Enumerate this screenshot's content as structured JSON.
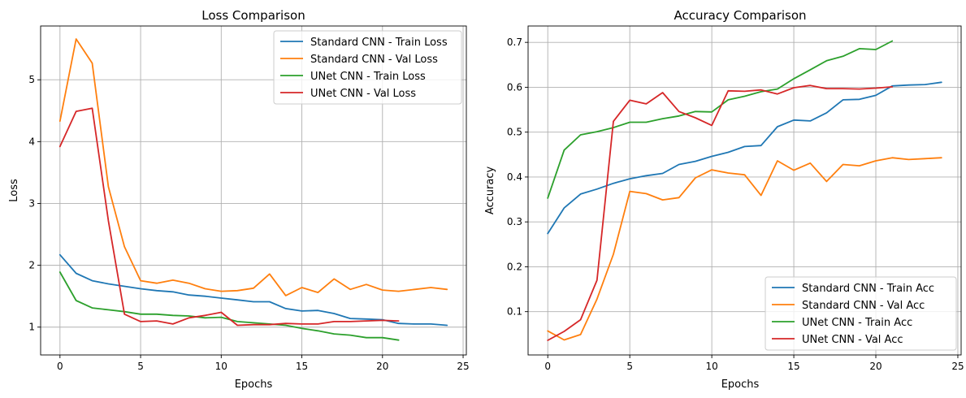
{
  "chart_data": [
    {
      "type": "line",
      "title": "Loss Comparison",
      "xlabel": "Epochs",
      "ylabel": "Loss",
      "xlim": [
        -1.2,
        25.2
      ],
      "ylim": [
        0.55,
        5.87
      ],
      "xticks": [
        0,
        5,
        10,
        15,
        20,
        25
      ],
      "yticks": [
        1,
        2,
        3,
        4,
        5
      ],
      "grid": true,
      "legend_position": "top-right",
      "series": [
        {
          "name": "Standard CNN - Train Loss",
          "color": "#1f77b4",
          "x": [
            0,
            1,
            2,
            3,
            4,
            5,
            6,
            7,
            8,
            9,
            10,
            11,
            12,
            13,
            14,
            15,
            16,
            17,
            18,
            19,
            20,
            21,
            22,
            23,
            24
          ],
          "values": [
            2.17,
            1.87,
            1.75,
            1.7,
            1.66,
            1.62,
            1.59,
            1.57,
            1.52,
            1.5,
            1.47,
            1.44,
            1.41,
            1.41,
            1.3,
            1.26,
            1.27,
            1.22,
            1.14,
            1.13,
            1.12,
            1.06,
            1.05,
            1.05,
            1.03
          ]
        },
        {
          "name": "Standard CNN - Val Loss",
          "color": "#ff7f0e",
          "x": [
            0,
            1,
            2,
            3,
            4,
            5,
            6,
            7,
            8,
            9,
            10,
            11,
            12,
            13,
            14,
            15,
            16,
            17,
            18,
            19,
            20,
            21,
            22,
            23,
            24
          ],
          "values": [
            4.33,
            5.66,
            5.27,
            3.27,
            2.3,
            1.75,
            1.71,
            1.76,
            1.71,
            1.62,
            1.58,
            1.59,
            1.63,
            1.86,
            1.51,
            1.64,
            1.56,
            1.78,
            1.61,
            1.69,
            1.6,
            1.58,
            1.61,
            1.64,
            1.61
          ]
        },
        {
          "name": "UNet CNN - Train Loss",
          "color": "#2ca02c",
          "x": [
            0,
            1,
            2,
            3,
            4,
            5,
            6,
            7,
            8,
            9,
            10,
            11,
            12,
            13,
            14,
            15,
            16,
            17,
            18,
            19,
            20,
            21
          ],
          "values": [
            1.89,
            1.43,
            1.31,
            1.28,
            1.25,
            1.21,
            1.21,
            1.19,
            1.18,
            1.15,
            1.16,
            1.09,
            1.07,
            1.05,
            1.03,
            0.98,
            0.94,
            0.89,
            0.87,
            0.83,
            0.83,
            0.79
          ]
        },
        {
          "name": "UNet CNN - Val Loss",
          "color": "#d62728",
          "x": [
            0,
            1,
            2,
            3,
            4,
            5,
            6,
            7,
            8,
            9,
            10,
            11,
            12,
            13,
            14,
            15,
            16,
            17,
            18,
            19,
            20,
            21
          ],
          "values": [
            3.92,
            4.49,
            4.54,
            2.72,
            1.21,
            1.09,
            1.1,
            1.05,
            1.15,
            1.19,
            1.24,
            1.03,
            1.04,
            1.04,
            1.06,
            1.05,
            1.05,
            1.09,
            1.09,
            1.1,
            1.11,
            1.1
          ]
        }
      ]
    },
    {
      "type": "line",
      "title": "Accuracy Comparison",
      "xlabel": "Epochs",
      "ylabel": "Accuracy",
      "xlim": [
        -1.2,
        25.2
      ],
      "ylim": [
        0.0035,
        0.7365
      ],
      "xticks": [
        0,
        5,
        10,
        15,
        20,
        25
      ],
      "yticks": [
        0.1,
        0.2,
        0.3,
        0.4,
        0.5,
        0.6,
        0.7
      ],
      "grid": true,
      "legend_position": "bottom-right",
      "series": [
        {
          "name": "Standard CNN - Train Acc",
          "color": "#1f77b4",
          "x": [
            0,
            1,
            2,
            3,
            4,
            5,
            6,
            7,
            8,
            9,
            10,
            11,
            12,
            13,
            14,
            15,
            16,
            17,
            18,
            19,
            20,
            21,
            22,
            23,
            24
          ],
          "values": [
            0.274,
            0.331,
            0.362,
            0.373,
            0.386,
            0.396,
            0.403,
            0.408,
            0.428,
            0.435,
            0.446,
            0.455,
            0.468,
            0.47,
            0.512,
            0.527,
            0.525,
            0.543,
            0.572,
            0.573,
            0.582,
            0.603,
            0.605,
            0.606,
            0.611
          ]
        },
        {
          "name": "Standard CNN - Val Acc",
          "color": "#ff7f0e",
          "x": [
            0,
            1,
            2,
            3,
            4,
            5,
            6,
            7,
            8,
            9,
            10,
            11,
            12,
            13,
            14,
            15,
            16,
            17,
            18,
            19,
            20,
            21,
            22,
            23,
            24
          ],
          "values": [
            0.057,
            0.037,
            0.049,
            0.128,
            0.228,
            0.368,
            0.363,
            0.349,
            0.354,
            0.398,
            0.416,
            0.409,
            0.405,
            0.359,
            0.436,
            0.415,
            0.431,
            0.39,
            0.428,
            0.425,
            0.436,
            0.443,
            0.439,
            0.441,
            0.443
          ]
        },
        {
          "name": "UNet CNN - Train Acc",
          "color": "#2ca02c",
          "x": [
            0,
            1,
            2,
            3,
            4,
            5,
            6,
            7,
            8,
            9,
            10,
            11,
            12,
            13,
            14,
            15,
            16,
            17,
            18,
            19,
            20,
            21
          ],
          "values": [
            0.353,
            0.46,
            0.494,
            0.501,
            0.51,
            0.522,
            0.522,
            0.53,
            0.536,
            0.546,
            0.545,
            0.572,
            0.58,
            0.59,
            0.596,
            0.619,
            0.639,
            0.659,
            0.669,
            0.686,
            0.684,
            0.703
          ]
        },
        {
          "name": "UNet CNN - Val Acc",
          "color": "#d62728",
          "x": [
            0,
            1,
            2,
            3,
            4,
            5,
            6,
            7,
            8,
            9,
            10,
            11,
            12,
            13,
            14,
            15,
            16,
            17,
            18,
            19,
            20,
            21
          ],
          "values": [
            0.036,
            0.056,
            0.082,
            0.17,
            0.524,
            0.571,
            0.563,
            0.588,
            0.546,
            0.532,
            0.515,
            0.592,
            0.591,
            0.594,
            0.585,
            0.599,
            0.604,
            0.597,
            0.597,
            0.596,
            0.598,
            0.601
          ]
        }
      ]
    }
  ]
}
